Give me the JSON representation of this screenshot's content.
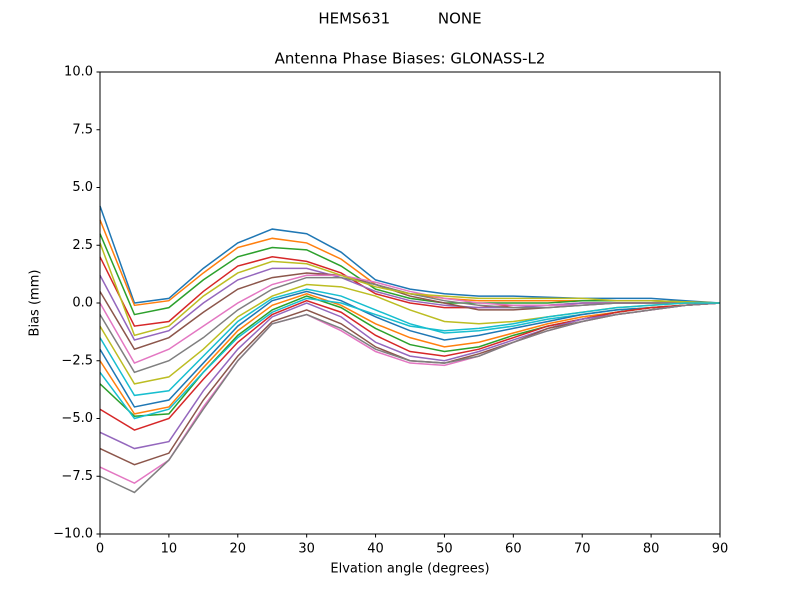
{
  "chart_data": {
    "type": "line",
    "suptitle": "HEMS631          NONE",
    "title": "Antenna Phase Biases: GLONASS-L2",
    "x_label": "Elvation angle (degrees)",
    "y_label": "Bias (mm)",
    "x": [
      0,
      5,
      10,
      15,
      20,
      25,
      30,
      35,
      40,
      45,
      50,
      55,
      60,
      65,
      70,
      75,
      80,
      85,
      90
    ],
    "xlim": [
      0,
      90
    ],
    "xticks": [
      0,
      10,
      20,
      30,
      40,
      50,
      60,
      70,
      80,
      90
    ],
    "ylim": [
      -10,
      10
    ],
    "yticks": [
      {
        "value": -10,
        "label": "−10.0"
      },
      {
        "value": -7.5,
        "label": "−7.5"
      },
      {
        "value": -5,
        "label": "−5.0"
      },
      {
        "value": -2.5,
        "label": "−2.5"
      },
      {
        "value": 0,
        "label": "0.0"
      },
      {
        "value": 2.5,
        "label": "2.5"
      },
      {
        "value": 5,
        "label": "5.0"
      },
      {
        "value": 7.5,
        "label": "7.5"
      },
      {
        "value": 10,
        "label": "10.0"
      }
    ],
    "grid": false,
    "series": [
      {
        "color": "#1f77b4",
        "values": [
          4.2,
          0.0,
          0.2,
          1.5,
          2.6,
          3.2,
          3.0,
          2.2,
          1.0,
          0.6,
          0.4,
          0.3,
          0.3,
          0.25,
          0.2,
          0.2,
          0.2,
          0.1,
          0
        ]
      },
      {
        "color": "#ff7f0e",
        "values": [
          3.6,
          -0.1,
          0.1,
          1.3,
          2.4,
          2.8,
          2.6,
          1.9,
          0.8,
          0.4,
          0.2,
          0.1,
          0.1,
          0.1,
          0.1,
          0.1,
          0.1,
          0.05,
          0
        ]
      },
      {
        "color": "#2ca02c",
        "values": [
          3.0,
          -0.5,
          -0.2,
          1.0,
          2.0,
          2.4,
          2.3,
          1.6,
          0.6,
          0.2,
          0.0,
          0.0,
          0.0,
          0.0,
          0.1,
          0.1,
          0.1,
          0.05,
          0
        ]
      },
      {
        "color": "#d62728",
        "values": [
          2.0,
          -1.0,
          -0.8,
          0.5,
          1.6,
          2.0,
          1.8,
          1.3,
          0.4,
          0.0,
          -0.2,
          -0.2,
          -0.1,
          -0.1,
          0.0,
          0.0,
          0.0,
          0.0,
          0
        ]
      },
      {
        "color": "#9467bd",
        "values": [
          1.2,
          -1.6,
          -1.2,
          0.0,
          1.0,
          1.5,
          1.5,
          1.1,
          0.5,
          0.1,
          -0.1,
          -0.2,
          -0.2,
          -0.1,
          0.0,
          0.0,
          0.0,
          0.0,
          0
        ]
      },
      {
        "color": "#8c564b",
        "values": [
          0.5,
          -2.0,
          -1.5,
          -0.4,
          0.6,
          1.1,
          1.3,
          1.2,
          0.8,
          0.3,
          0.0,
          -0.3,
          -0.3,
          -0.2,
          -0.1,
          0.0,
          0.0,
          0.0,
          0
        ]
      },
      {
        "color": "#e377c2",
        "values": [
          0.0,
          -2.6,
          -2.0,
          -1.0,
          0.0,
          0.8,
          1.2,
          1.2,
          0.9,
          0.5,
          0.2,
          0.0,
          -0.1,
          -0.1,
          -0.1,
          0.0,
          0.0,
          0.0,
          0
        ]
      },
      {
        "color": "#7f7f7f",
        "values": [
          -0.5,
          -3.0,
          -2.5,
          -1.5,
          -0.3,
          0.6,
          1.1,
          1.1,
          0.8,
          0.4,
          0.1,
          -0.1,
          -0.2,
          -0.2,
          -0.1,
          0.0,
          0.0,
          0.0,
          0
        ]
      },
      {
        "color": "#bcbd22",
        "values": [
          -1.0,
          -3.5,
          -3.2,
          -2.0,
          -0.6,
          0.3,
          0.8,
          0.7,
          0.3,
          -0.3,
          -0.8,
          -0.9,
          -0.8,
          -0.6,
          -0.4,
          -0.2,
          -0.1,
          0.0,
          0
        ]
      },
      {
        "color": "#17becf",
        "values": [
          -1.5,
          -4.0,
          -3.8,
          -2.3,
          -0.8,
          0.2,
          0.6,
          0.3,
          -0.3,
          -0.9,
          -1.3,
          -1.2,
          -1.0,
          -0.7,
          -0.5,
          -0.3,
          -0.2,
          -0.1,
          0
        ]
      },
      {
        "color": "#1f77b4",
        "values": [
          -2.0,
          -4.5,
          -4.2,
          -2.6,
          -1.0,
          0.1,
          0.5,
          0.1,
          -0.6,
          -1.2,
          -1.6,
          -1.4,
          -1.1,
          -0.8,
          -0.5,
          -0.3,
          -0.2,
          -0.1,
          0
        ]
      },
      {
        "color": "#ff7f0e",
        "values": [
          -2.5,
          -4.8,
          -4.5,
          -2.8,
          -1.2,
          -0.1,
          0.4,
          -0.1,
          -0.9,
          -1.5,
          -1.9,
          -1.7,
          -1.3,
          -0.9,
          -0.6,
          -0.4,
          -0.2,
          -0.1,
          0
        ]
      },
      {
        "color": "#2ca02c",
        "values": [
          -3.5,
          -4.9,
          -4.8,
          -3.0,
          -1.4,
          -0.3,
          0.3,
          -0.2,
          -1.1,
          -1.8,
          -2.1,
          -1.9,
          -1.4,
          -1.0,
          -0.7,
          -0.4,
          -0.2,
          -0.1,
          0
        ]
      },
      {
        "color": "#d62728",
        "values": [
          -4.6,
          -5.5,
          -5.0,
          -3.3,
          -1.7,
          -0.5,
          0.1,
          -0.4,
          -1.4,
          -2.1,
          -2.3,
          -2.0,
          -1.5,
          -1.0,
          -0.7,
          -0.4,
          -0.2,
          -0.1,
          0
        ]
      },
      {
        "color": "#9467bd",
        "values": [
          -5.6,
          -6.3,
          -6.0,
          -3.8,
          -2.0,
          -0.6,
          0.0,
          -0.6,
          -1.7,
          -2.3,
          -2.5,
          -2.1,
          -1.6,
          -1.1,
          -0.7,
          -0.5,
          -0.3,
          -0.1,
          0
        ]
      },
      {
        "color": "#8c564b",
        "values": [
          -6.3,
          -7.0,
          -6.5,
          -4.2,
          -2.3,
          -0.8,
          -0.3,
          -0.9,
          -1.9,
          -2.5,
          -2.6,
          -2.2,
          -1.7,
          -1.1,
          -0.8,
          -0.5,
          -0.3,
          -0.1,
          0
        ]
      },
      {
        "color": "#e377c2",
        "values": [
          -7.1,
          -7.8,
          -6.8,
          -4.5,
          -2.5,
          -0.9,
          -0.5,
          -1.2,
          -2.1,
          -2.6,
          -2.7,
          -2.3,
          -1.7,
          -1.2,
          -0.8,
          -0.5,
          -0.3,
          -0.1,
          0
        ]
      },
      {
        "color": "#7f7f7f",
        "values": [
          -7.5,
          -8.2,
          -6.8,
          -4.6,
          -2.5,
          -0.9,
          -0.5,
          -1.1,
          -2.0,
          -2.5,
          -2.6,
          -2.3,
          -1.7,
          -1.2,
          -0.8,
          -0.5,
          -0.3,
          -0.1,
          0
        ]
      },
      {
        "color": "#bcbd22",
        "values": [
          2.6,
          -1.4,
          -1.0,
          0.3,
          1.3,
          1.8,
          1.7,
          1.2,
          0.7,
          0.4,
          0.3,
          0.2,
          0.2,
          0.2,
          0.2,
          0.1,
          0.1,
          0.05,
          0
        ]
      },
      {
        "color": "#17becf",
        "values": [
          -3.0,
          -5.0,
          -4.6,
          -3.0,
          -1.5,
          -0.4,
          0.2,
          0.0,
          -0.5,
          -1.0,
          -1.2,
          -1.1,
          -0.9,
          -0.6,
          -0.4,
          -0.2,
          -0.1,
          0.0,
          0
        ]
      }
    ]
  }
}
